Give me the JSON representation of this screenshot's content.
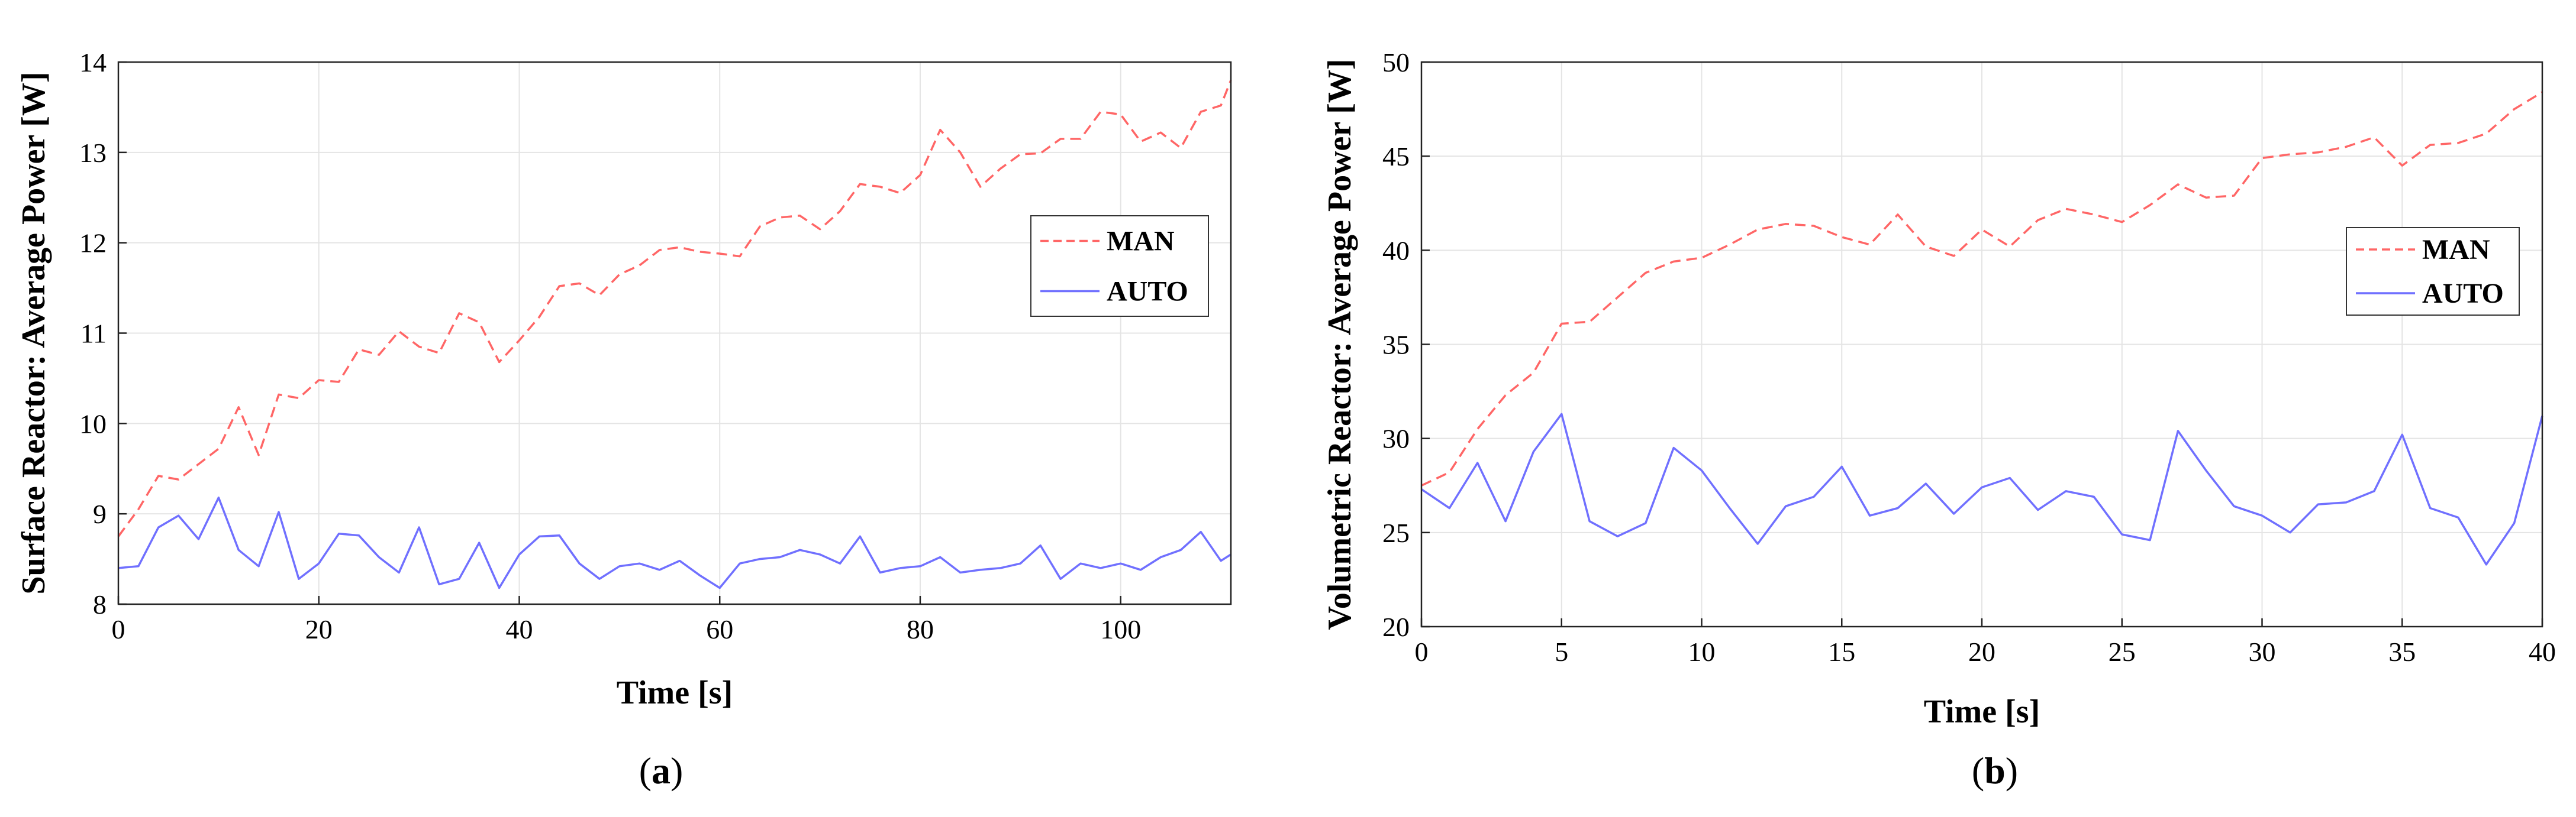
{
  "chart_data": [
    {
      "type": "line",
      "panel_label": "a",
      "xlabel": "Time [s]",
      "ylabel": "Surface Reactor: Average Power [W]",
      "xlim": [
        0,
        111
      ],
      "ylim": [
        8,
        14
      ],
      "xticks": [
        0,
        20,
        40,
        60,
        80,
        100
      ],
      "yticks": [
        8,
        9,
        10,
        11,
        12,
        13,
        14
      ],
      "grid": true,
      "legend_position": "right, middle",
      "series": [
        {
          "name": "MAN",
          "color": "#ff6666",
          "style": "dashed",
          "x": [
            0,
            2,
            4,
            6,
            8,
            10,
            12,
            14,
            16,
            18,
            20,
            22,
            24,
            26,
            28,
            30,
            32,
            34,
            36,
            38,
            40,
            42,
            44,
            46,
            48,
            50,
            52,
            54,
            56,
            58,
            60,
            62,
            64,
            66,
            68,
            70,
            72,
            74,
            76,
            78,
            80,
            82,
            84,
            86,
            88,
            90,
            92,
            94,
            96,
            98,
            100,
            102,
            104,
            106,
            108,
            110,
            111
          ],
          "values": [
            8.75,
            9.05,
            9.42,
            9.38,
            9.55,
            9.72,
            10.18,
            9.65,
            10.32,
            10.28,
            10.48,
            10.46,
            10.82,
            10.76,
            11.02,
            10.85,
            10.78,
            11.22,
            11.12,
            10.68,
            10.92,
            11.18,
            11.52,
            11.55,
            11.42,
            11.65,
            11.75,
            11.92,
            11.95,
            11.9,
            11.88,
            11.85,
            12.18,
            12.28,
            12.3,
            12.15,
            12.35,
            12.65,
            12.62,
            12.55,
            12.75,
            13.25,
            13.0,
            12.62,
            12.82,
            12.98,
            12.99,
            13.15,
            13.15,
            13.45,
            13.42,
            13.12,
            13.22,
            13.05,
            13.45,
            13.52,
            13.8
          ]
        },
        {
          "name": "AUTO",
          "color": "#7070ff",
          "style": "solid",
          "x": [
            0,
            2,
            4,
            6,
            8,
            10,
            12,
            14,
            16,
            18,
            20,
            22,
            24,
            26,
            28,
            30,
            32,
            34,
            36,
            38,
            40,
            42,
            44,
            46,
            48,
            50,
            52,
            54,
            56,
            58,
            60,
            62,
            64,
            66,
            68,
            70,
            72,
            74,
            76,
            78,
            80,
            82,
            84,
            86,
            88,
            90,
            92,
            94,
            96,
            98,
            100,
            102,
            104,
            106,
            108,
            110,
            111
          ],
          "values": [
            8.4,
            8.42,
            8.85,
            8.98,
            8.72,
            9.18,
            8.6,
            8.42,
            9.02,
            8.28,
            8.45,
            8.78,
            8.76,
            8.52,
            8.35,
            8.85,
            8.22,
            8.28,
            8.68,
            8.18,
            8.55,
            8.75,
            8.76,
            8.45,
            8.28,
            8.42,
            8.45,
            8.38,
            8.48,
            8.32,
            8.18,
            8.45,
            8.5,
            8.52,
            8.6,
            8.55,
            8.45,
            8.75,
            8.35,
            8.4,
            8.42,
            8.52,
            8.35,
            8.38,
            8.4,
            8.45,
            8.65,
            8.28,
            8.45,
            8.4,
            8.45,
            8.38,
            8.52,
            8.6,
            8.8,
            8.48,
            8.55
          ]
        }
      ]
    },
    {
      "type": "line",
      "panel_label": "b",
      "xlabel": "Time [s]",
      "ylabel": "Volumetric Reactor: Average Power [W]",
      "xlim": [
        0,
        40
      ],
      "ylim": [
        20,
        50
      ],
      "xticks": [
        0,
        5,
        10,
        15,
        20,
        25,
        30,
        35,
        40
      ],
      "yticks": [
        20,
        25,
        30,
        35,
        40,
        45,
        50
      ],
      "grid": true,
      "legend_position": "right, middle",
      "series": [
        {
          "name": "MAN",
          "color": "#ff6666",
          "style": "dashed",
          "x": [
            0,
            1,
            2,
            3,
            4,
            5,
            6,
            7,
            8,
            9,
            10,
            11,
            12,
            13,
            14,
            15,
            16,
            17,
            18,
            19,
            20,
            21,
            22,
            23,
            24,
            25,
            26,
            27,
            28,
            29,
            30,
            31,
            32,
            33,
            34,
            35,
            36,
            37,
            38,
            39,
            40
          ],
          "values": [
            27.5,
            28.2,
            30.5,
            32.3,
            33.5,
            36.1,
            36.2,
            37.5,
            38.8,
            39.4,
            39.6,
            40.3,
            41.1,
            41.4,
            41.3,
            40.7,
            40.3,
            41.9,
            40.2,
            39.7,
            41.1,
            40.2,
            41.6,
            42.2,
            41.9,
            41.5,
            42.4,
            43.5,
            42.8,
            42.9,
            44.9,
            45.1,
            45.2,
            45.5,
            46.0,
            44.5,
            45.6,
            45.7,
            46.2,
            47.5,
            48.4
          ]
        },
        {
          "name": "AUTO",
          "color": "#7070ff",
          "style": "solid",
          "x": [
            0,
            1,
            2,
            3,
            4,
            5,
            6,
            7,
            8,
            9,
            10,
            11,
            12,
            13,
            14,
            15,
            16,
            17,
            18,
            19,
            20,
            21,
            22,
            23,
            24,
            25,
            26,
            27,
            28,
            29,
            30,
            31,
            32,
            33,
            34,
            35,
            36,
            37,
            38,
            39,
            40
          ],
          "values": [
            27.3,
            26.3,
            28.7,
            25.6,
            29.3,
            31.3,
            25.6,
            24.8,
            25.5,
            29.5,
            28.3,
            26.3,
            24.4,
            26.4,
            26.9,
            28.5,
            25.9,
            26.3,
            27.6,
            26.0,
            27.4,
            27.9,
            26.2,
            27.2,
            26.9,
            24.9,
            24.6,
            30.4,
            28.3,
            26.4,
            25.9,
            25.0,
            26.5,
            26.6,
            27.2,
            30.2,
            26.3,
            25.8,
            23.3,
            25.5,
            31.2
          ]
        }
      ]
    }
  ]
}
